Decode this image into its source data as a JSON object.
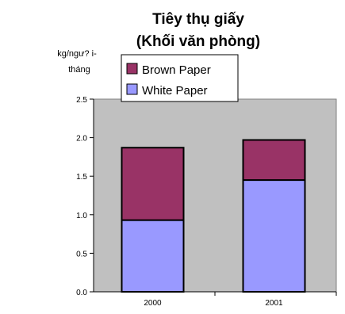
{
  "chart_data": {
    "type": "bar",
    "stacked": true,
    "title_line1": "Tiêy thụ giấy",
    "title_line2": "(Khối văn phòng)",
    "ylabel_line1": "kg/ngư? i-",
    "ylabel_line2": "tháng",
    "xlabel": "",
    "categories": [
      "2000",
      "2001"
    ],
    "series": [
      {
        "name": "White Paper",
        "values": [
          0.93,
          1.45
        ],
        "color": "#9999ff"
      },
      {
        "name": "Brown Paper",
        "values": [
          0.94,
          0.52
        ],
        "color": "#993366"
      }
    ],
    "ylim": [
      0,
      2.5
    ],
    "yticks": [
      "0.0",
      "0.5",
      "1.0",
      "1.5",
      "2.0",
      "2.5"
    ],
    "plot_background": "#c0c0c0",
    "grid": false,
    "legend_placement": "top-left"
  }
}
